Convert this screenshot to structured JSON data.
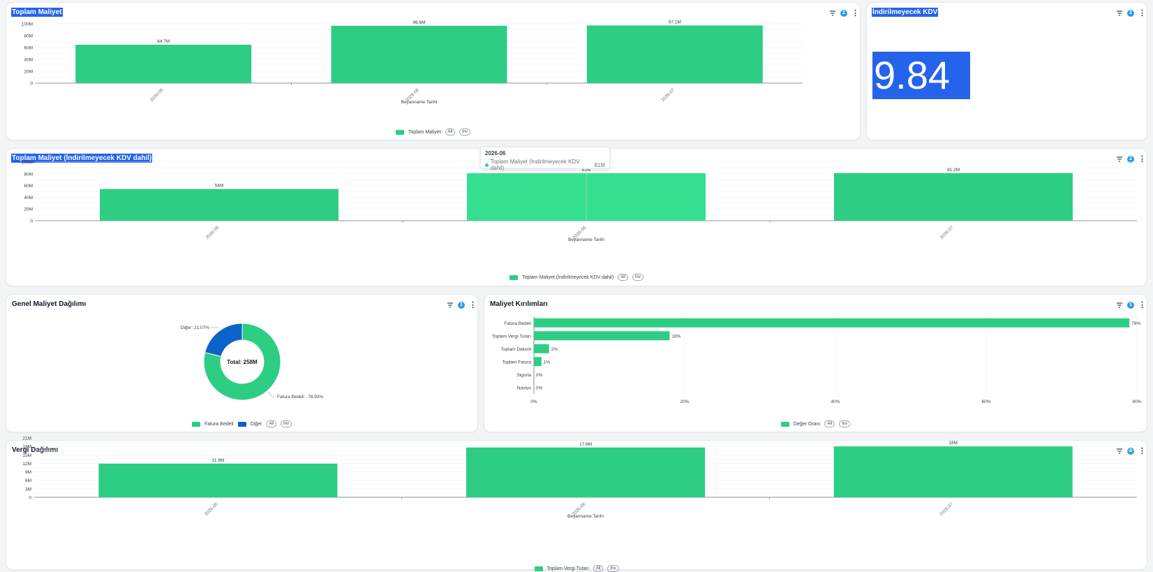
{
  "colors": {
    "accent": "#2ecd84",
    "accent_hover": "#34e090",
    "blue": "#0b63c9",
    "highlight": "#2563eb",
    "badge": "#2d9cdb"
  },
  "icons": {
    "filter": "filter-icon",
    "menu": "kebab-menu-icon"
  },
  "panels": {
    "toplam_maliyet": {
      "title": "Toplam Maliyet",
      "badge": "2",
      "legend": {
        "label": "Toplam Maliyet",
        "all": "All",
        "inv": "Inv"
      }
    },
    "kdv": {
      "title": "İndirilmeyecek KDV",
      "badge": "2",
      "value": "9.84"
    },
    "toplam_maliyet_kdv": {
      "title": "Toplam Maliyet (İndirilmeyecek KDV dahil)",
      "badge": "2",
      "legend": {
        "label": "Toplam Maliyet (İndirilmeyecek KDV dahil)",
        "all": "All",
        "inv": "Inv"
      }
    },
    "genel": {
      "title": "Genel Maliyet Dağılımı",
      "badge": "1",
      "legend": {
        "a": "Fatura Bedeli",
        "b": "Diğer",
        "all": "All",
        "inv": "Inv"
      }
    },
    "kirilim": {
      "title": "Maliyet Kırılımları",
      "badge": "1",
      "legend": {
        "label": "Değer Oranı",
        "all": "All",
        "inv": "Inv"
      }
    },
    "vergi": {
      "title": "Vergi Dağılımı",
      "badge": "2",
      "legend": {
        "label": "Toplam Vergi Tutarı",
        "all": "All",
        "inv": "Inv"
      }
    }
  },
  "tooltip": {
    "header": "2026-06",
    "series": "Toplam Maliyet (İndirilmeyecek KDV dahil)",
    "value": "81M"
  },
  "chart_data": [
    {
      "id": "toplam_maliyet",
      "type": "bar",
      "categories": [
        "2026-05",
        "2026-06",
        "2026-07"
      ],
      "series": [
        {
          "name": "Toplam Maliyet",
          "values": [
            64.7,
            96.6,
            97.1
          ]
        }
      ],
      "data_labels": [
        "64.7M",
        "96.6M",
        "97.1M"
      ],
      "xlabel": "Beyanname Tarihi",
      "ylabel": "",
      "ylim": [
        0,
        100
      ],
      "yticks": [
        0,
        20,
        40,
        60,
        80,
        100
      ],
      "ytick_labels": [
        "0",
        "20M",
        "40M",
        "60M",
        "80M",
        "100M"
      ],
      "grid": true,
      "legend": "bottom"
    },
    {
      "id": "toplam_maliyet_kdv",
      "type": "bar",
      "categories": [
        "2026-05",
        "2026-06",
        "2026-07"
      ],
      "series": [
        {
          "name": "Toplam Maliyet (İndirilmeyecek KDV dahil)",
          "values": [
            54,
            81,
            81.2
          ]
        }
      ],
      "data_labels": [
        "54M",
        "81M",
        "81.2M"
      ],
      "xlabel": "Beyanname Tarihi",
      "ylabel": "",
      "ylim": [
        0,
        100
      ],
      "yticks": [
        0,
        20,
        40,
        60,
        80,
        100
      ],
      "ytick_labels": [
        "0",
        "20M",
        "40M",
        "60M",
        "80M",
        "100M"
      ],
      "grid": true,
      "legend": "bottom"
    },
    {
      "id": "genel",
      "type": "pie",
      "slices": [
        {
          "name": "Fatura Bedeli",
          "value": 78.93,
          "label": "Fatura Bedeli : 78.93%"
        },
        {
          "name": "Diğer",
          "value": 21.07,
          "label": "Diğer: 21.07%"
        }
      ],
      "center_label": "Total: 258M",
      "legend": "bottom"
    },
    {
      "id": "kirilim",
      "type": "bar",
      "orientation": "horizontal",
      "categories": [
        "Fatura Bedeli",
        "Toplam Vergi Tutarı",
        "Toplam Dekont",
        "Toplam Fatura",
        "Sigorta",
        "Navlun"
      ],
      "series": [
        {
          "name": "Değer Oranı",
          "values": [
            79,
            18,
            2,
            1,
            0,
            0
          ]
        }
      ],
      "data_labels": [
        "79%",
        "18%",
        "2%",
        "1%",
        "0%",
        "0%"
      ],
      "xlim": [
        0,
        80
      ],
      "xticks": [
        0,
        20,
        40,
        60,
        80
      ],
      "xtick_labels": [
        "0%",
        "20%",
        "40%",
        "60%",
        "80%"
      ],
      "grid": true,
      "legend": "bottom"
    },
    {
      "id": "vergi",
      "type": "bar",
      "categories": [
        "2026-05",
        "2026-06",
        "2026-07"
      ],
      "series": [
        {
          "name": "Toplam Vergi Tutarı",
          "values": [
            11.9,
            17.6,
            18
          ]
        }
      ],
      "data_labels": [
        "11.9M",
        "17.6M",
        "18M"
      ],
      "xlabel": "Beyanname Tarihi",
      "ylabel": "",
      "ylim": [
        0,
        21
      ],
      "yticks": [
        0,
        3,
        6,
        9,
        12,
        15,
        18,
        21
      ],
      "ytick_labels": [
        "0",
        "3M",
        "6M",
        "9M",
        "12M",
        "15M",
        "18M",
        "21M"
      ],
      "grid": true,
      "legend": "bottom"
    }
  ]
}
